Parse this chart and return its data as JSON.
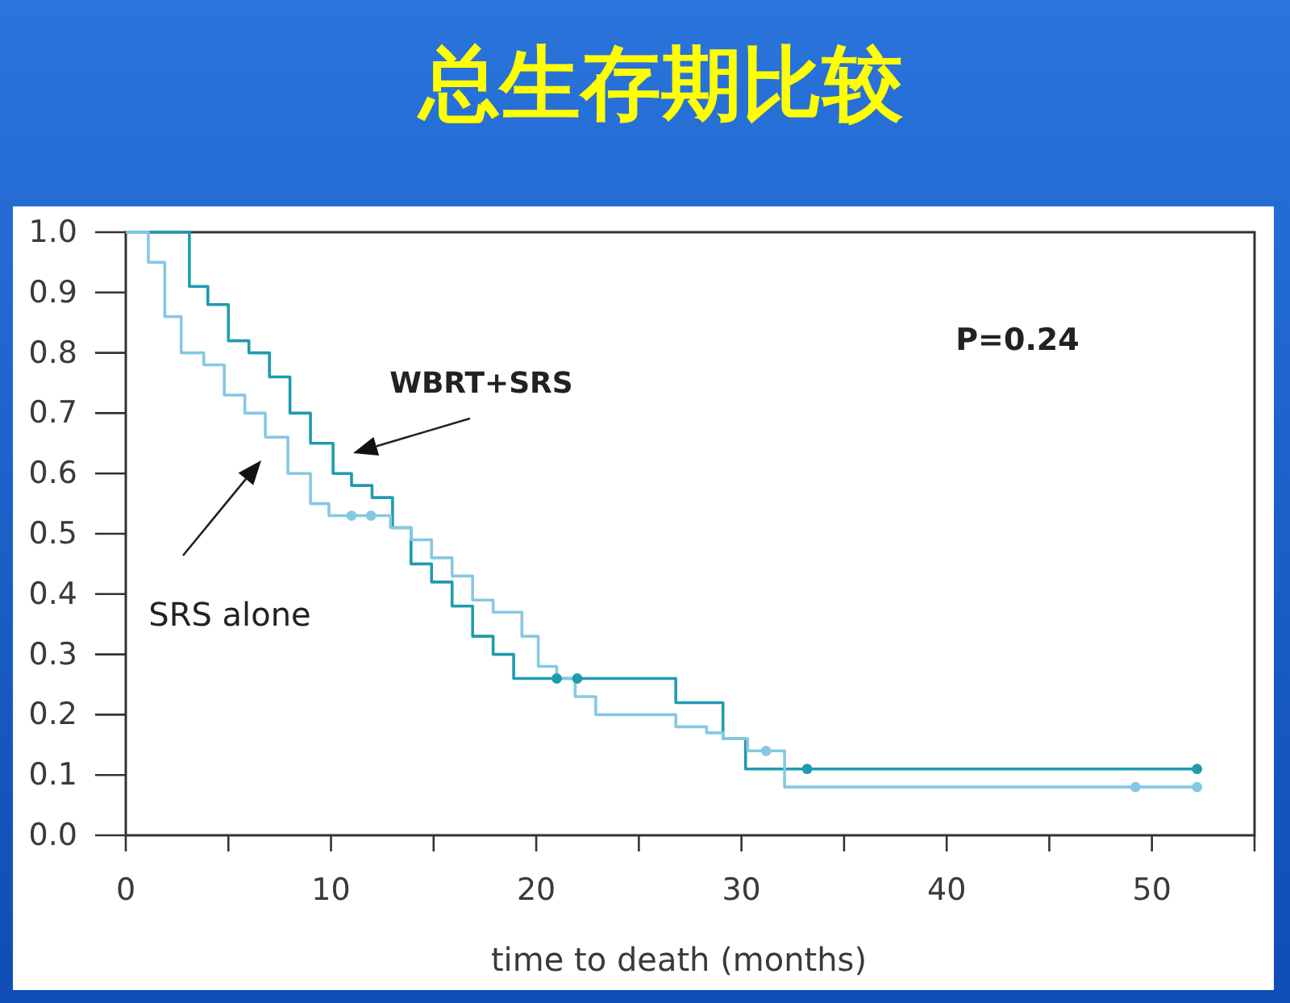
{
  "chart_data": {
    "type": "step",
    "title": "总生存期比较",
    "xlabel": "time to death (months)",
    "xlim": [
      0,
      55
    ],
    "xticks": [
      0,
      {
        "value": 5,
        "label": null
      },
      10,
      {
        "value": 15,
        "label": null
      },
      20,
      {
        "value": 25,
        "label": null
      },
      30,
      {
        "value": 35,
        "label": null
      },
      40,
      {
        "value": 45,
        "label": null
      },
      50,
      {
        "value": 55,
        "label": null
      }
    ],
    "ylim": [
      0,
      1.0
    ],
    "yticks": [
      {
        "value": 0,
        "label": "0.0"
      },
      0.1,
      0.2,
      0.3,
      0.4,
      0.5,
      0.6,
      0.7,
      0.8,
      0.9,
      {
        "value": 1,
        "label": "1.0"
      }
    ],
    "series": [
      {
        "color": "#1e9cad",
        "x": [
          0,
          3.1,
          4.0,
          5.0,
          6.0,
          7.0,
          8.0,
          9.0,
          10.1,
          11.0,
          12.0,
          13.0,
          13.9,
          14.9,
          15.9,
          16.9,
          17.9,
          18.9,
          26.8,
          29.1,
          30.2,
          52.2
        ],
        "values": [
          1.0,
          0.91,
          0.88,
          0.82,
          0.8,
          0.76,
          0.7,
          0.65,
          0.6,
          0.58,
          0.56,
          0.51,
          0.45,
          0.42,
          0.38,
          0.33,
          0.3,
          0.26,
          0.22,
          0.16,
          0.11,
          0.11
        ]
      },
      {
        "color": "#86c8e2",
        "x": [
          0,
          1.1,
          1.9,
          2.7,
          3.8,
          4.8,
          5.8,
          6.8,
          7.9,
          9.0,
          9.9,
          12.9,
          13.9,
          14.9,
          15.9,
          16.9,
          17.9,
          19.3,
          20.1,
          21.0,
          21.9,
          22.9,
          26.8,
          28.3,
          29.1,
          30.3,
          32.1,
          52.2
        ],
        "values": [
          1.0,
          0.95,
          0.86,
          0.8,
          0.78,
          0.73,
          0.7,
          0.66,
          0.6,
          0.55,
          0.53,
          0.51,
          0.49,
          0.46,
          0.43,
          0.39,
          0.37,
          0.33,
          0.28,
          0.26,
          0.23,
          0.2,
          0.18,
          0.17,
          0.16,
          0.14,
          0.08,
          0.08
        ]
      },
      {
        "type": "scatter",
        "marker": "circle",
        "color": "#1e9cad",
        "x": [
          21.0,
          22.0,
          33.2,
          52.2
        ],
        "values": [
          0.26,
          0.26,
          0.11,
          0.11
        ]
      },
      {
        "type": "scatter",
        "marker": "circle",
        "color": "#86c8e2",
        "x": [
          11.0,
          11.95,
          31.2,
          49.2,
          52.2
        ],
        "values": [
          0.53,
          0.53,
          0.14,
          0.08,
          0.08
        ]
      }
    ],
    "annotations": [
      "WBRT+SRS",
      "SRS alone",
      "P=0.24"
    ]
  }
}
